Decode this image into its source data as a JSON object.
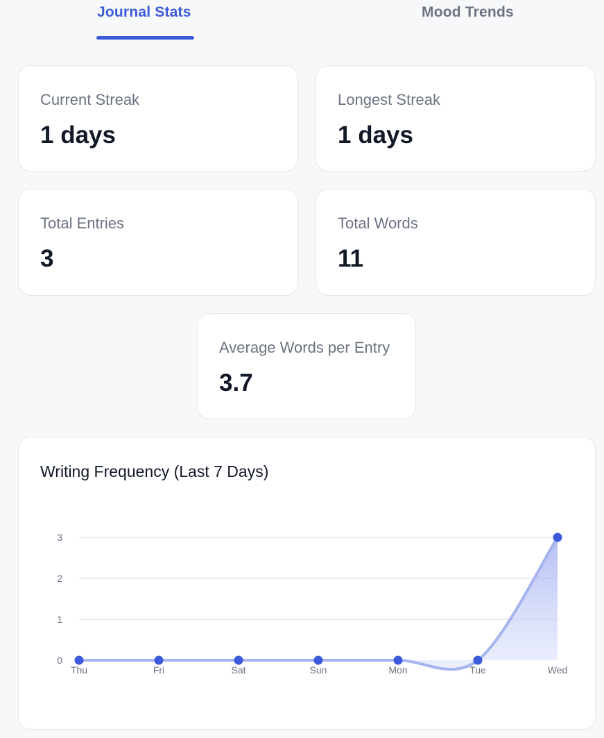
{
  "tabs": [
    {
      "label": "Journal Stats",
      "active": true
    },
    {
      "label": "Mood Trends",
      "active": false
    }
  ],
  "stats": {
    "current_streak": {
      "label": "Current Streak",
      "value": "1 days"
    },
    "longest_streak": {
      "label": "Longest Streak",
      "value": "1 days"
    },
    "total_entries": {
      "label": "Total Entries",
      "value": "3"
    },
    "total_words": {
      "label": "Total Words",
      "value": "11"
    },
    "avg_words": {
      "label": "Average Words per Entry",
      "value": "3.7"
    }
  },
  "chart": {
    "title": "Writing Frequency (Last 7 Days)"
  },
  "colors": {
    "accent": "#3b5bdb",
    "line": "#a5b4f0",
    "point": "#3b5bdb"
  },
  "chart_data": {
    "type": "area",
    "title": "Writing Frequency (Last 7 Days)",
    "categories": [
      "Thu",
      "Fri",
      "Sat",
      "Sun",
      "Mon",
      "Tue",
      "Wed"
    ],
    "values": [
      0,
      0,
      0,
      0,
      0,
      0,
      3
    ],
    "yticks": [
      0,
      1,
      2,
      3
    ],
    "ylim": [
      0,
      3
    ],
    "grid": true,
    "legend": "none"
  }
}
